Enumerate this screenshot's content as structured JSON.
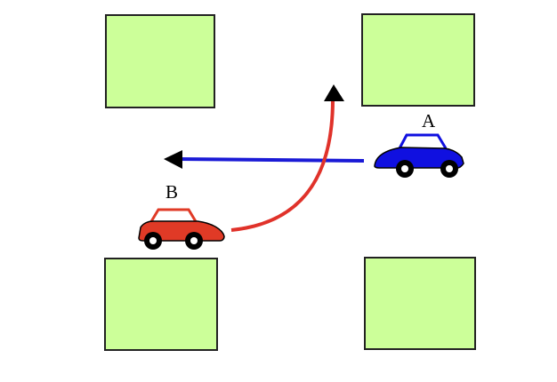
{
  "colors": {
    "background": "#ffffff",
    "block_fill": "#ccff99",
    "block_stroke": "#222222",
    "car_a_body": "#1010e0",
    "car_b_body": "#e03a26",
    "path_a": "#1a1ad6",
    "path_b": "#e0322a",
    "arrowhead": "#000000",
    "wheel": "#000000",
    "hub": "#ffffff"
  },
  "cars": {
    "a": {
      "label": "A",
      "direction": "left"
    },
    "b": {
      "label": "B",
      "direction": "right-then-up"
    }
  }
}
